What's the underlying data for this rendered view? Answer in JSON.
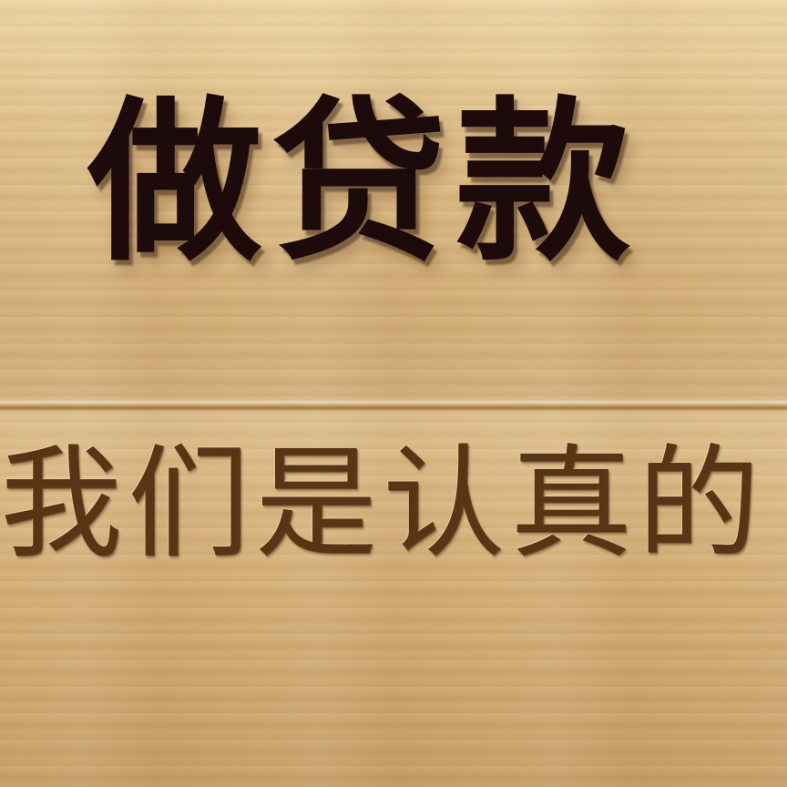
{
  "headline": "做贷款",
  "tagline": "我们是认真的",
  "colors": {
    "wood_light": "#e7cc98",
    "wood_mid": "#d6b27a",
    "headline_text": "#1d0a0a",
    "tagline_text": "#5a3515"
  }
}
